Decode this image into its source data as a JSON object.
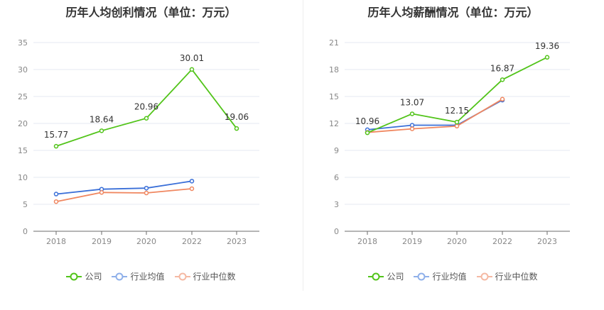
{
  "chart_data": [
    {
      "type": "line",
      "title": "历年人均创利情况（单位：万元）",
      "categories": [
        "2018",
        "2019",
        "2020",
        "2022",
        "2023"
      ],
      "y_ticks": [
        "0",
        "5",
        "10",
        "15",
        "20",
        "25",
        "30",
        "35"
      ],
      "ylim": [
        0,
        35
      ],
      "series": [
        {
          "name": "公司",
          "color": "#52c41a",
          "values": [
            15.77,
            18.64,
            20.96,
            30.01,
            19.06
          ],
          "labels": [
            "15.77",
            "18.64",
            "20.96",
            "30.01",
            "19.06"
          ]
        },
        {
          "name": "行业均值",
          "color": "#3a6fd8",
          "values": [
            6.9,
            7.8,
            8.0,
            9.3,
            null
          ]
        },
        {
          "name": "行业中位数",
          "color": "#f08760",
          "values": [
            5.5,
            7.2,
            7.1,
            7.9,
            null
          ]
        }
      ]
    },
    {
      "type": "line",
      "title": "历年人均薪酬情况（单位：万元）",
      "categories": [
        "2018",
        "2019",
        "2020",
        "2022",
        "2023"
      ],
      "y_ticks": [
        "0",
        "3",
        "6",
        "9",
        "12",
        "15",
        "18",
        "21"
      ],
      "ylim": [
        0,
        21
      ],
      "series": [
        {
          "name": "公司",
          "color": "#52c41a",
          "values": [
            10.96,
            13.07,
            12.15,
            16.87,
            19.36
          ],
          "labels": [
            "10.96",
            "13.07",
            "12.15",
            "16.87",
            "19.36"
          ]
        },
        {
          "name": "行业均值",
          "color": "#3a6fd8",
          "values": [
            11.3,
            11.8,
            11.8,
            14.6,
            null
          ]
        },
        {
          "name": "行业中位数",
          "color": "#f08760",
          "values": [
            11.0,
            11.4,
            11.7,
            14.7,
            null
          ]
        }
      ]
    }
  ],
  "legend": {
    "company": "公司",
    "industry_avg": "行业均值",
    "industry_median": "行业中位数",
    "colors": {
      "company": "#52c41a",
      "industry_avg": "#8fb0ea",
      "industry_median": "#f5b9a3"
    }
  }
}
